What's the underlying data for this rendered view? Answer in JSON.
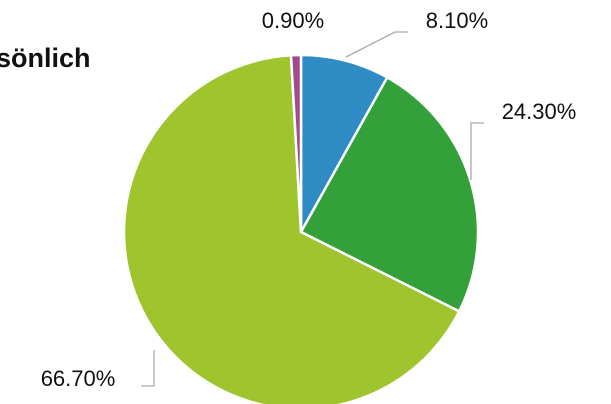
{
  "chart_data": {
    "type": "pie",
    "title": "sönlich",
    "categories": [
      null,
      null,
      null,
      null
    ],
    "values": [
      8.1,
      24.3,
      66.7,
      0.9
    ],
    "value_labels": [
      "8.10%",
      "24.30%",
      "66.70%",
      "0.90%"
    ],
    "colors": [
      "#2e8bc3",
      "#33a03a",
      "#9fc42e",
      "#a24a8e"
    ]
  }
}
